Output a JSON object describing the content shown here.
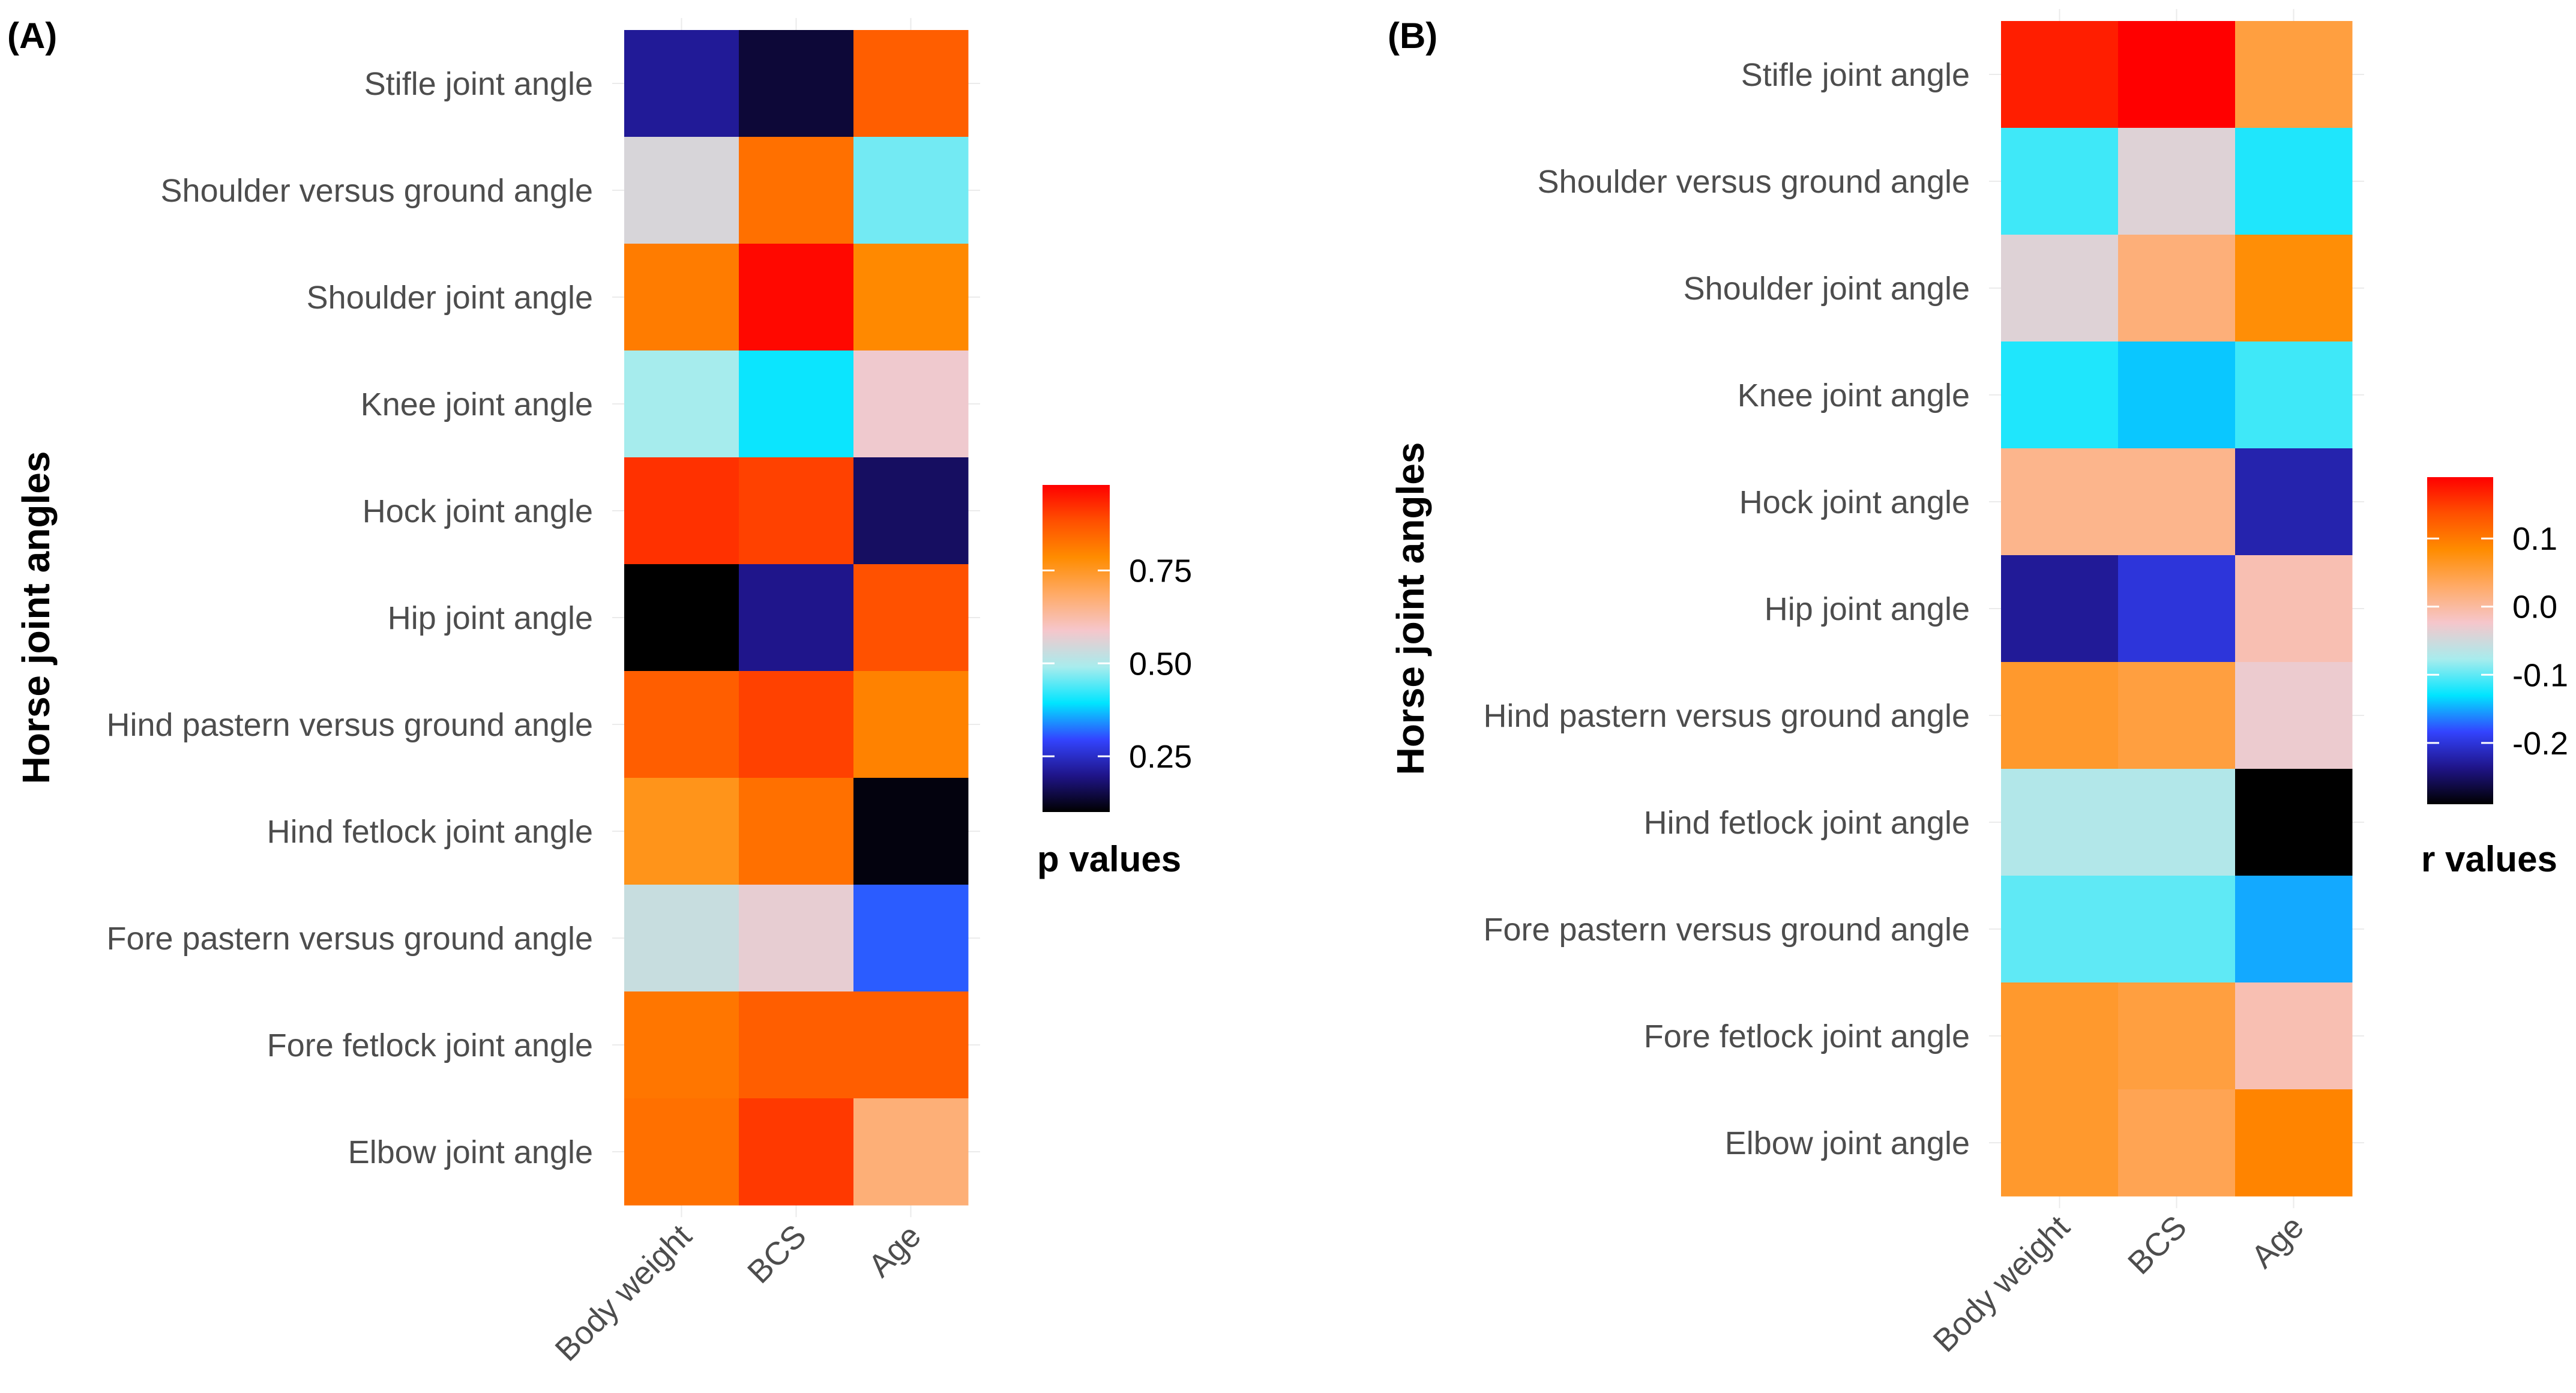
{
  "chart_data": [
    {
      "type": "heatmap",
      "panel_label": "(A)",
      "ylabel": "Horse joint angles",
      "xlabel": "",
      "categories_x": [
        "Body weight",
        "BCS",
        "Age"
      ],
      "categories_y": [
        "Stifle joint angle",
        "Shoulder versus ground angle",
        "Shoulder joint angle",
        "Knee joint angle",
        "Hock joint angle",
        "Hip joint angle",
        "Hind pastern versus ground angle",
        "Hind fetlock joint angle",
        "Fore pastern versus ground angle",
        "Fore fetlock joint angle",
        "Elbow joint angle"
      ],
      "values": [
        [
          0.21,
          0.14,
          0.86
        ],
        [
          0.55,
          0.83,
          0.46
        ],
        [
          0.81,
          0.97,
          0.79
        ],
        [
          0.49,
          0.4,
          0.58
        ],
        [
          0.92,
          0.9,
          0.17
        ],
        [
          0.1,
          0.2,
          0.88
        ],
        [
          0.86,
          0.9,
          0.8
        ],
        [
          0.76,
          0.83,
          0.11
        ],
        [
          0.53,
          0.57,
          0.31
        ],
        [
          0.82,
          0.86,
          0.86
        ],
        [
          0.83,
          0.91,
          0.67
        ]
      ],
      "legend": {
        "title": "p values",
        "ticks": [
          "0.25",
          "0.50",
          "0.75"
        ],
        "tick_values": [
          0.25,
          0.5,
          0.75
        ],
        "range": [
          0.1,
          0.98
        ],
        "position": "right"
      },
      "colors": {
        "low": "#000000",
        "stops": [
          "#000000",
          "#1f1488",
          "#3344ff",
          "#00e5ff",
          "#a8eced",
          "#f6c6cb",
          "#ffaa66",
          "#ff8c00",
          "#ff5000",
          "#ff0000"
        ]
      }
    },
    {
      "type": "heatmap",
      "panel_label": "(B)",
      "ylabel": "Horse joint angles",
      "xlabel": "",
      "categories_x": [
        "Body weight",
        "BCS",
        "Age"
      ],
      "categories_y": [
        "Stifle joint angle",
        "Shoulder versus ground angle",
        "Shoulder joint angle",
        "Knee joint angle",
        "Hock joint angle",
        "Hip joint angle",
        "Hind pastern versus ground angle",
        "Hind fetlock joint angle",
        "Fore pastern versus ground angle",
        "Fore fetlock joint angle",
        "Elbow joint angle"
      ],
      "values": [
        [
          0.17,
          0.19,
          0.05
        ],
        [
          -0.11,
          -0.04,
          -0.12
        ],
        [
          -0.04,
          0.02,
          0.08
        ],
        [
          -0.12,
          -0.14,
          -0.11
        ],
        [
          0.01,
          0.01,
          -0.22
        ],
        [
          -0.23,
          -0.2,
          -0.01
        ],
        [
          0.06,
          0.05,
          -0.03
        ],
        [
          -0.07,
          -0.07,
          -0.29
        ],
        [
          -0.1,
          -0.1,
          -0.15
        ],
        [
          0.06,
          0.05,
          -0.01
        ],
        [
          0.06,
          0.04,
          0.09
        ]
      ],
      "legend": {
        "title": "r values",
        "ticks": [
          "0.1",
          "0.0",
          "-0.1",
          "-0.2"
        ],
        "tick_values": [
          0.1,
          0.0,
          -0.1,
          -0.2
        ],
        "range": [
          -0.29,
          0.19
        ],
        "position": "right"
      },
      "colors": {
        "low": "#000000",
        "stops": [
          "#000000",
          "#1f1488",
          "#3344ff",
          "#00e5ff",
          "#a8eced",
          "#f6c6cb",
          "#ffaa66",
          "#ff8c00",
          "#ff5000",
          "#ff0000"
        ]
      }
    }
  ]
}
